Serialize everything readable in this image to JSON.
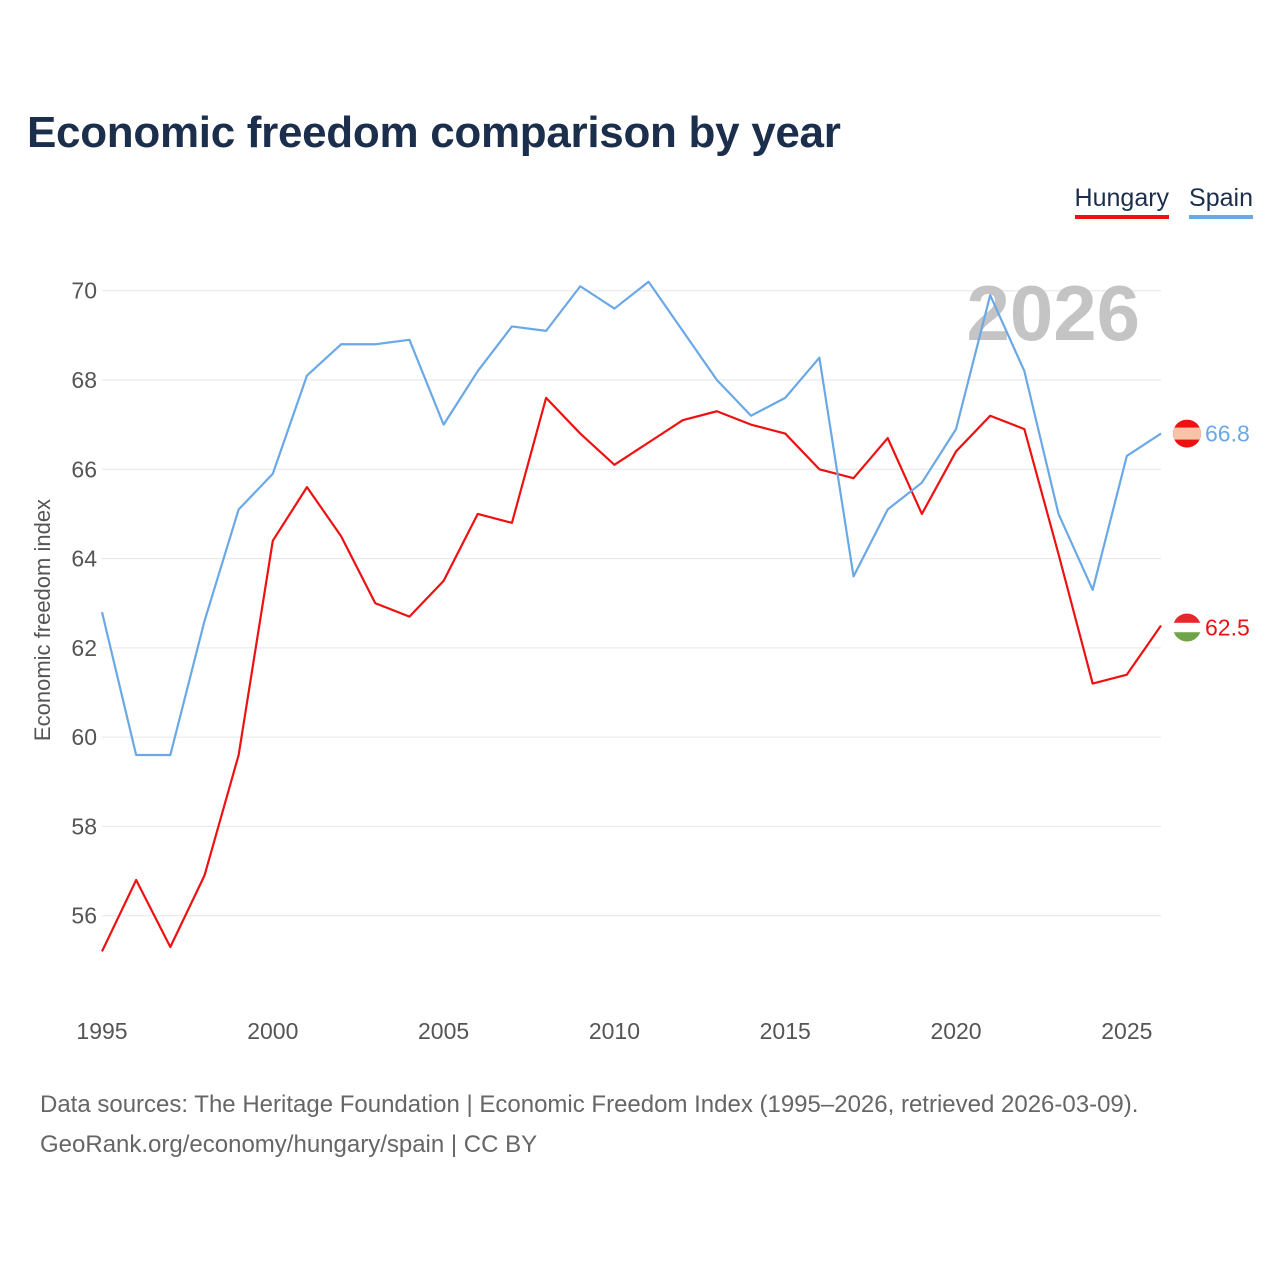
{
  "title": "Economic freedom comparison by year",
  "legend": {
    "hungary": "Hungary",
    "spain": "Spain"
  },
  "year_watermark": "2026",
  "source": {
    "line1": "Data sources: The Heritage Foundation | Economic Freedom Index (1995–2026, retrieved 2026-03-09).",
    "line2": "GeoRank.org/economy/hungary/spain | CC BY"
  },
  "colors": {
    "hungary": "#ee1111",
    "spain": "#6aa8e6",
    "title": "#1b2e4b",
    "grid": "#e6e6e6"
  },
  "chart_data": {
    "type": "line",
    "title": "Economic freedom comparison by year",
    "xlabel": "",
    "ylabel": "Economic freedom index",
    "xlim": [
      1995,
      2026
    ],
    "ylim": [
      54,
      70.8
    ],
    "x_ticks": [
      1995,
      2000,
      2005,
      2010,
      2015,
      2020,
      2025
    ],
    "y_ticks": [
      56,
      58,
      60,
      62,
      64,
      66,
      68,
      70
    ],
    "grid": true,
    "legend_position": "top-right",
    "x": [
      1995,
      1996,
      1997,
      1998,
      1999,
      2000,
      2001,
      2002,
      2003,
      2004,
      2005,
      2006,
      2007,
      2008,
      2009,
      2010,
      2011,
      2012,
      2013,
      2014,
      2015,
      2016,
      2017,
      2018,
      2019,
      2020,
      2021,
      2022,
      2023,
      2024,
      2025,
      2026
    ],
    "series": [
      {
        "name": "Hungary",
        "color": "#ee1111",
        "end_label": "62.5",
        "values": [
          55.2,
          56.8,
          55.3,
          56.9,
          59.6,
          64.4,
          65.6,
          64.5,
          63.0,
          62.7,
          63.5,
          65.0,
          64.8,
          67.6,
          66.8,
          66.1,
          66.6,
          67.1,
          67.3,
          67.0,
          66.8,
          66.0,
          65.8,
          66.7,
          65.0,
          66.4,
          67.2,
          66.9,
          64.1,
          61.2,
          61.4,
          62.5
        ]
      },
      {
        "name": "Spain",
        "color": "#6aa8e6",
        "end_label": "66.8",
        "values": [
          62.8,
          59.6,
          59.6,
          62.6,
          65.1,
          65.9,
          68.1,
          68.8,
          68.8,
          68.9,
          67.0,
          68.2,
          69.2,
          69.1,
          70.1,
          69.6,
          70.2,
          69.1,
          68.0,
          67.2,
          67.6,
          68.5,
          63.6,
          65.1,
          65.7,
          66.9,
          69.9,
          68.2,
          65.0,
          63.3,
          66.3,
          66.8
        ]
      }
    ]
  }
}
